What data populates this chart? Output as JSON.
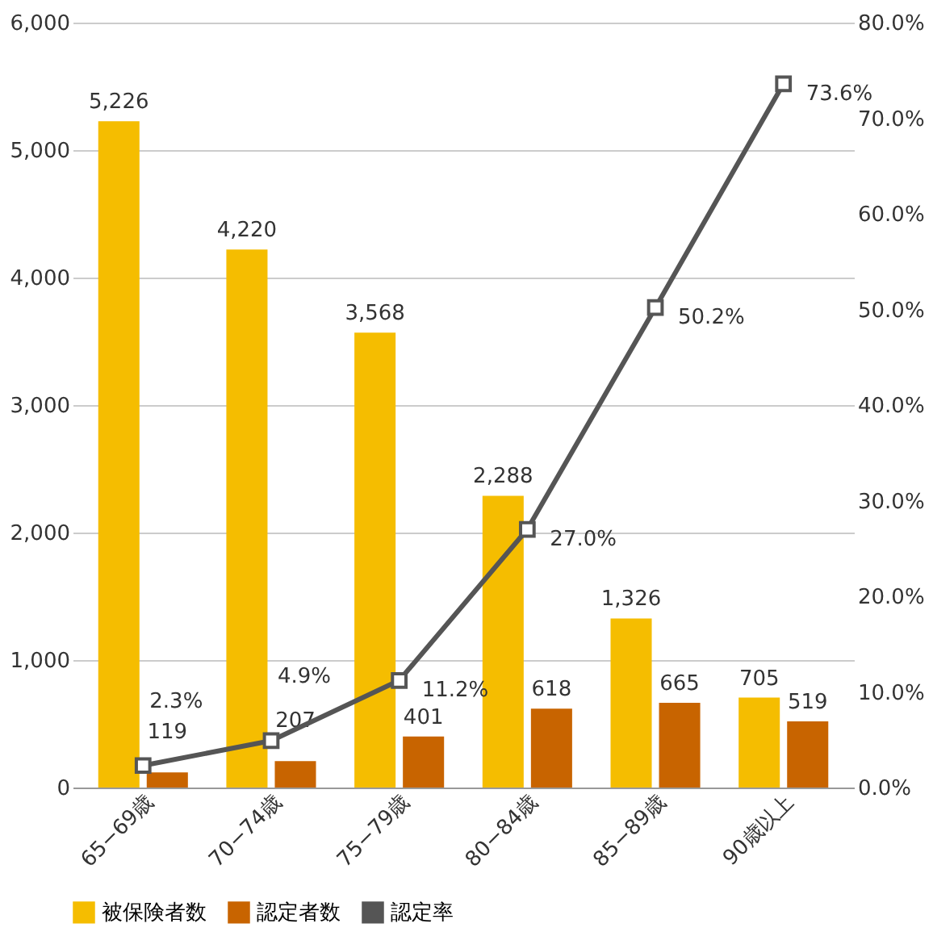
{
  "chart_data": {
    "type": "bar",
    "categories": [
      "65−69歳",
      "70−74歳",
      "75−79歳",
      "80−84歳",
      "85−89歳",
      "90歳以上"
    ],
    "series": [
      {
        "name": "被保険者数",
        "color": "#f5bd00",
        "values": [
          5226,
          4220,
          3568,
          2288,
          1326,
          705
        ],
        "value_labels": [
          "5,226",
          "4,220",
          "3,568",
          "2,288",
          "1,326",
          "705"
        ]
      },
      {
        "name": "認定者数",
        "color": "#c86400",
        "values": [
          119,
          207,
          401,
          618,
          665,
          519
        ],
        "value_labels": [
          "119",
          "207",
          "401",
          "618",
          "665",
          "519"
        ]
      },
      {
        "name": "認定率",
        "type": "line",
        "axis": "y2",
        "color": "#555555",
        "marker": "square",
        "line_style": "solid",
        "values": [
          2.3,
          4.9,
          11.2,
          27.0,
          50.2,
          73.6
        ],
        "value_labels": [
          "2.3%",
          "4.9%",
          "11.2%",
          "27.0%",
          "50.2%",
          "73.6%"
        ]
      }
    ],
    "ylim": [
      0,
      6000
    ],
    "yticks": [
      0,
      {
        "value": 1000,
        "label": "1,000"
      },
      {
        "value": 2000,
        "label": "2,000"
      },
      {
        "value": 3000,
        "label": "3,000"
      },
      {
        "value": 4000,
        "label": "4,000"
      },
      {
        "value": 5000,
        "label": "5,000"
      },
      {
        "value": 6000,
        "label": "6,000"
      }
    ],
    "y2lim": [
      0,
      80
    ],
    "y2ticks": [
      {
        "value": 0,
        "label": "0.0%"
      },
      {
        "value": 10,
        "label": "10.0%"
      },
      {
        "value": 20,
        "label": "20.0%"
      },
      {
        "value": 30,
        "label": "30.0%"
      },
      {
        "value": 40,
        "label": "40.0%"
      },
      {
        "value": 50,
        "label": "50.0%"
      },
      {
        "value": 60,
        "label": "60.0%"
      },
      {
        "value": 70,
        "label": "70.0%"
      },
      {
        "value": 80,
        "label": "80.0%"
      }
    ],
    "grid": "y",
    "legend": "bottom"
  }
}
